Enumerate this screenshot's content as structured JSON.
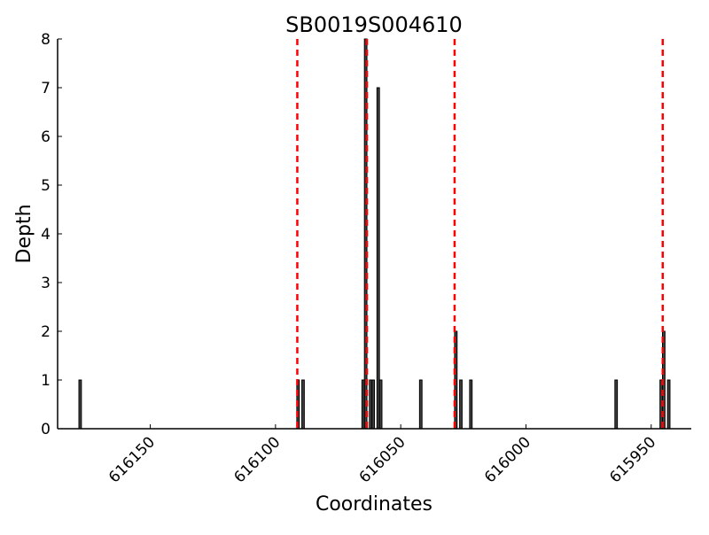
{
  "chart_data": {
    "type": "bar",
    "title": "SB0019S004610",
    "xlabel": "Coordinates",
    "ylabel": "Depth",
    "xlim": [
      616187,
      615934
    ],
    "x_reversed": true,
    "ylim": [
      0,
      8
    ],
    "grid": false,
    "xticks": [
      616150,
      616100,
      616050,
      616000,
      615950
    ],
    "yticks": [
      0,
      1,
      2,
      3,
      4,
      5,
      6,
      7,
      8
    ],
    "bar_color": "#404040",
    "bar_edge_color": "#000000",
    "bars": [
      {
        "x": 616178,
        "y": 1
      },
      {
        "x": 616091,
        "y": 1
      },
      {
        "x": 616089,
        "y": 1
      },
      {
        "x": 616065,
        "y": 1
      },
      {
        "x": 616064,
        "y": 8
      },
      {
        "x": 616062,
        "y": 1
      },
      {
        "x": 616061,
        "y": 1
      },
      {
        "x": 616059,
        "y": 7
      },
      {
        "x": 616058,
        "y": 1
      },
      {
        "x": 616042,
        "y": 1
      },
      {
        "x": 616028,
        "y": 2
      },
      {
        "x": 616026,
        "y": 1
      },
      {
        "x": 616022,
        "y": 1
      },
      {
        "x": 615964,
        "y": 1
      },
      {
        "x": 615946,
        "y": 1
      },
      {
        "x": 615945,
        "y": 2
      },
      {
        "x": 615943,
        "y": 1
      }
    ],
    "vlines": {
      "color": "#ff0000",
      "style": "dashed",
      "x": [
        616091.3,
        616063.5,
        616028.5,
        615945.4
      ]
    }
  }
}
